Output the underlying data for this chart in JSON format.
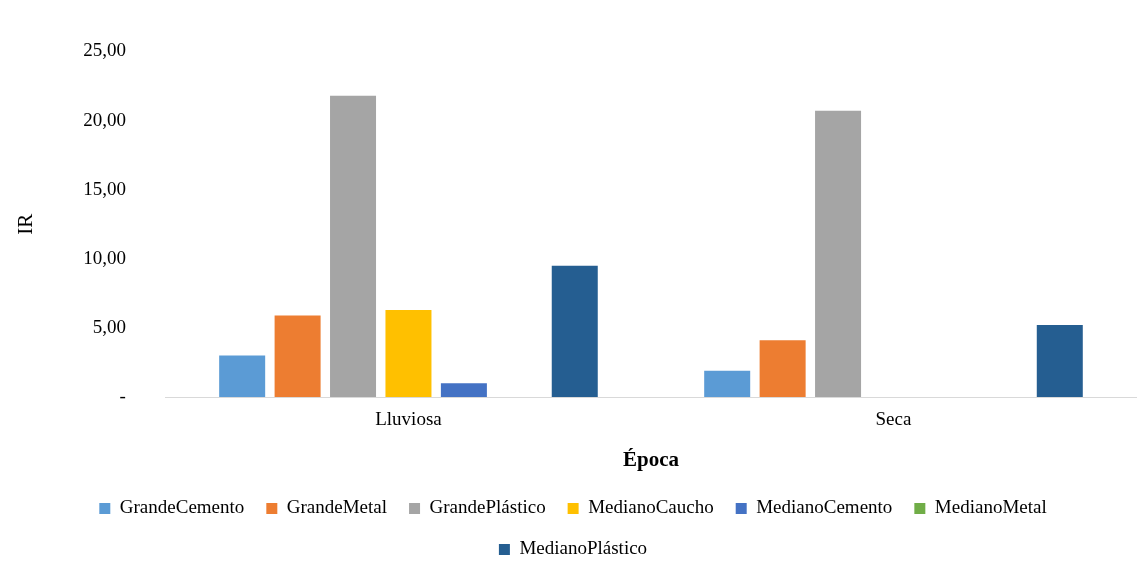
{
  "chart_data": {
    "type": "bar",
    "xlabel": "Época",
    "ylabel": "IR",
    "categories": [
      "Lluviosa",
      "Seca"
    ],
    "series": [
      {
        "name": "GrandeCemento",
        "color": "#5b9bd5",
        "values": [
          3.0,
          1.9
        ]
      },
      {
        "name": "GrandeMetal",
        "color": "#ed7d31",
        "values": [
          5.9,
          4.1
        ]
      },
      {
        "name": "GrandePlástico",
        "color": "#a5a5a5",
        "values": [
          21.8,
          20.7
        ]
      },
      {
        "name": "MedianoCaucho",
        "color": "#ffc000",
        "values": [
          6.3,
          0
        ]
      },
      {
        "name": "MedianoCemento",
        "color": "#4472c4",
        "values": [
          1.0,
          0
        ]
      },
      {
        "name": "MedianoMetal",
        "color": "#70ad47",
        "values": [
          0,
          0
        ]
      },
      {
        "name": "MedianoPlástico",
        "color": "#255e91",
        "values": [
          9.5,
          5.2
        ]
      }
    ],
    "ylim": [
      0,
      25
    ],
    "yticks": [
      {
        "value": 0,
        "label": "-"
      },
      {
        "value": 5,
        "label": "5,00"
      },
      {
        "value": 10,
        "label": "10,00"
      },
      {
        "value": 15,
        "label": "15,00"
      },
      {
        "value": 20,
        "label": "20,00"
      },
      {
        "value": 25,
        "label": "25,00"
      }
    ],
    "grid": false,
    "legend": "bottom"
  }
}
